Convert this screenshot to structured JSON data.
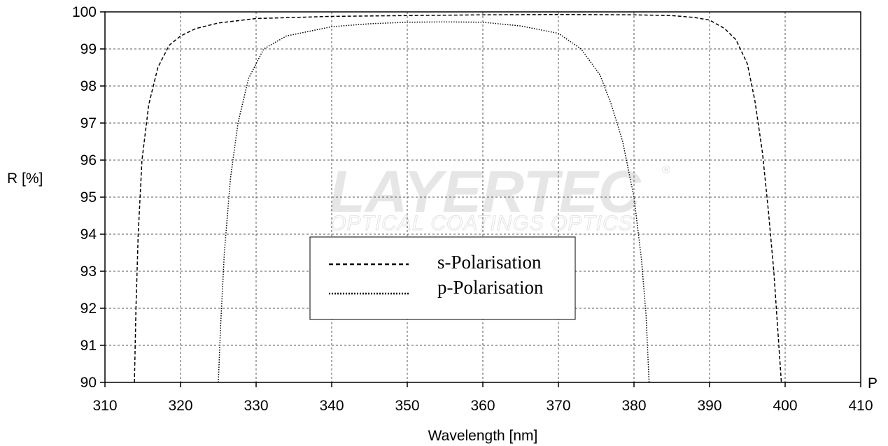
{
  "chart_data": {
    "type": "line",
    "xlabel": "Wavelength [nm]",
    "ylabel": "R [%]",
    "xlim": [
      310,
      410
    ],
    "ylim": [
      90,
      100
    ],
    "xticks": [
      "310",
      "320",
      "330",
      "340",
      "350",
      "360",
      "370",
      "380",
      "390",
      "400",
      "410"
    ],
    "yticks": [
      "90",
      "91",
      "92",
      "93",
      "94",
      "95",
      "96",
      "97",
      "98",
      "99",
      "100"
    ],
    "axis_end_label": "P",
    "grid": true,
    "legend_position": "center",
    "series": [
      {
        "name": "s-Polarisation",
        "style": "dashed",
        "color": "#000000",
        "points": [
          [
            313.9,
            90
          ],
          [
            314.1,
            92
          ],
          [
            314.4,
            94
          ],
          [
            314.9,
            96
          ],
          [
            315.8,
            97.5
          ],
          [
            317,
            98.5
          ],
          [
            318.5,
            99.1
          ],
          [
            320,
            99.35
          ],
          [
            322,
            99.55
          ],
          [
            325,
            99.7
          ],
          [
            330,
            99.82
          ],
          [
            340,
            99.88
          ],
          [
            350,
            99.9
          ],
          [
            360,
            99.92
          ],
          [
            370,
            99.93
          ],
          [
            380,
            99.92
          ],
          [
            385,
            99.9
          ],
          [
            388,
            99.85
          ],
          [
            390,
            99.78
          ],
          [
            392,
            99.55
          ],
          [
            393.5,
            99.25
          ],
          [
            395,
            98.6
          ],
          [
            396,
            97.6
          ],
          [
            397,
            96.2
          ],
          [
            397.8,
            94.6
          ],
          [
            398.5,
            93
          ],
          [
            399,
            91.5
          ],
          [
            399.5,
            90
          ]
        ]
      },
      {
        "name": "p-Polarisation",
        "style": "dotted",
        "color": "#000000",
        "points": [
          [
            325,
            90
          ],
          [
            325.3,
            91.5
          ],
          [
            325.8,
            93.5
          ],
          [
            326.6,
            95.5
          ],
          [
            327.6,
            97
          ],
          [
            329,
            98.2
          ],
          [
            331,
            99
          ],
          [
            334,
            99.35
          ],
          [
            340,
            99.6
          ],
          [
            345,
            99.68
          ],
          [
            350,
            99.72
          ],
          [
            355,
            99.73
          ],
          [
            360,
            99.72
          ],
          [
            365,
            99.62
          ],
          [
            370,
            99.42
          ],
          [
            373,
            99
          ],
          [
            375.5,
            98.3
          ],
          [
            377,
            97.5
          ],
          [
            378.5,
            96.5
          ],
          [
            380,
            95
          ],
          [
            381,
            93.3
          ],
          [
            381.6,
            91.8
          ],
          [
            382,
            90
          ]
        ]
      }
    ]
  },
  "watermark": {
    "brand": "LAYERTEC",
    "registered": "®",
    "tagline": "OPTICAL COATINGS  OPTICS"
  }
}
